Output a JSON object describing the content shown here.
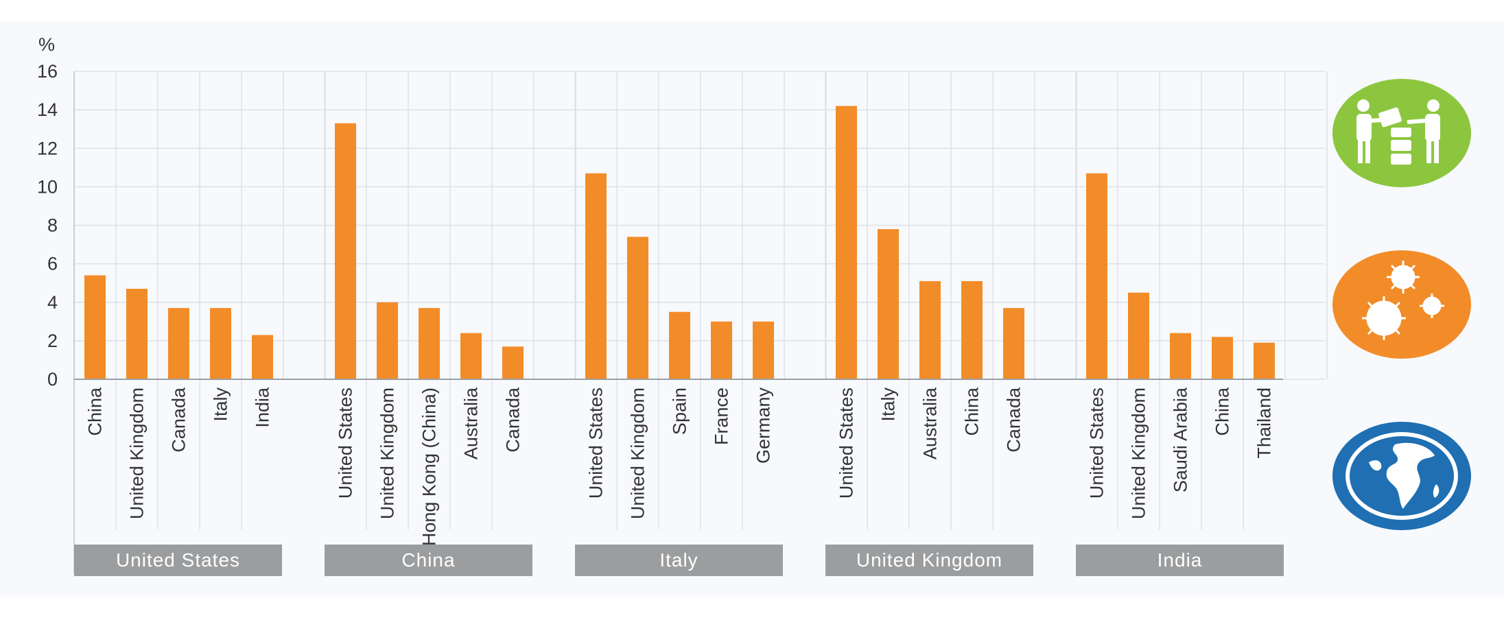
{
  "chart_data": {
    "type": "bar",
    "ylabel": "%",
    "ylim": [
      0,
      16
    ],
    "yticks": [
      "0",
      "2",
      "4",
      "6",
      "8",
      "10",
      "12",
      "14",
      "16"
    ],
    "grid": true,
    "bar_color": "#f28c28",
    "groups": [
      {
        "name": "United States",
        "categories": [
          "China",
          "United Kingdom",
          "Canada",
          "Italy",
          "India"
        ],
        "values": [
          5.4,
          4.7,
          3.7,
          3.7,
          2.3
        ]
      },
      {
        "name": "China",
        "categories": [
          "United States",
          "United Kingdom",
          "Hong Kong (China)",
          "Australia",
          "Canada"
        ],
        "values": [
          13.3,
          4.0,
          3.7,
          2.4,
          1.7
        ]
      },
      {
        "name": "Italy",
        "categories": [
          "United States",
          "United Kingdom",
          "Spain",
          "France",
          "Germany"
        ],
        "values": [
          10.7,
          7.4,
          3.5,
          3.0,
          3.0
        ]
      },
      {
        "name": "United Kingdom",
        "categories": [
          "United States",
          "Italy",
          "Australia",
          "China",
          "Canada"
        ],
        "values": [
          14.2,
          7.8,
          5.1,
          5.1,
          3.7
        ]
      },
      {
        "name": "India",
        "categories": [
          "United States",
          "United Kingdom",
          "Saudi Arabia",
          "China",
          "Thailand"
        ],
        "values": [
          10.7,
          4.5,
          2.4,
          2.2,
          1.9
        ]
      }
    ]
  },
  "icons": [
    {
      "name": "people-exchange-icon",
      "color": "#8cc63f"
    },
    {
      "name": "virus-icon",
      "color": "#f28c28"
    },
    {
      "name": "globe-icon",
      "color": "#1f6fb2"
    }
  ]
}
